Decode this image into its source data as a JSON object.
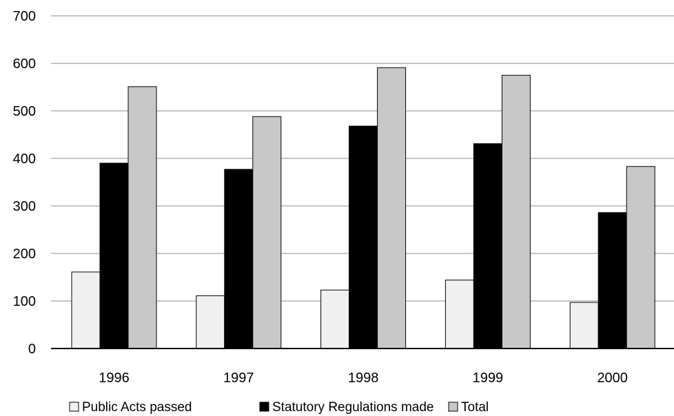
{
  "chart_data": {
    "type": "bar",
    "categories": [
      "1996",
      "1997",
      "1998",
      "1999",
      "2000"
    ],
    "series": [
      {
        "name": "Public Acts passed",
        "values": [
          161,
          111,
          123,
          144,
          97
        ],
        "color": "#f0f0f0"
      },
      {
        "name": "Statutory Regulations made",
        "values": [
          390,
          377,
          468,
          431,
          286
        ],
        "color": "#000000"
      },
      {
        "name": "Total",
        "values": [
          551,
          488,
          591,
          575,
          383
        ],
        "color": "#c8c8c8"
      }
    ],
    "yticks": [
      "0",
      "100",
      "200",
      "300",
      "400",
      "500",
      "600",
      "700"
    ],
    "ylim": [
      0,
      700
    ],
    "grid": true,
    "legend_position": "bottom",
    "title": "",
    "xlabel": "",
    "ylabel": ""
  }
}
